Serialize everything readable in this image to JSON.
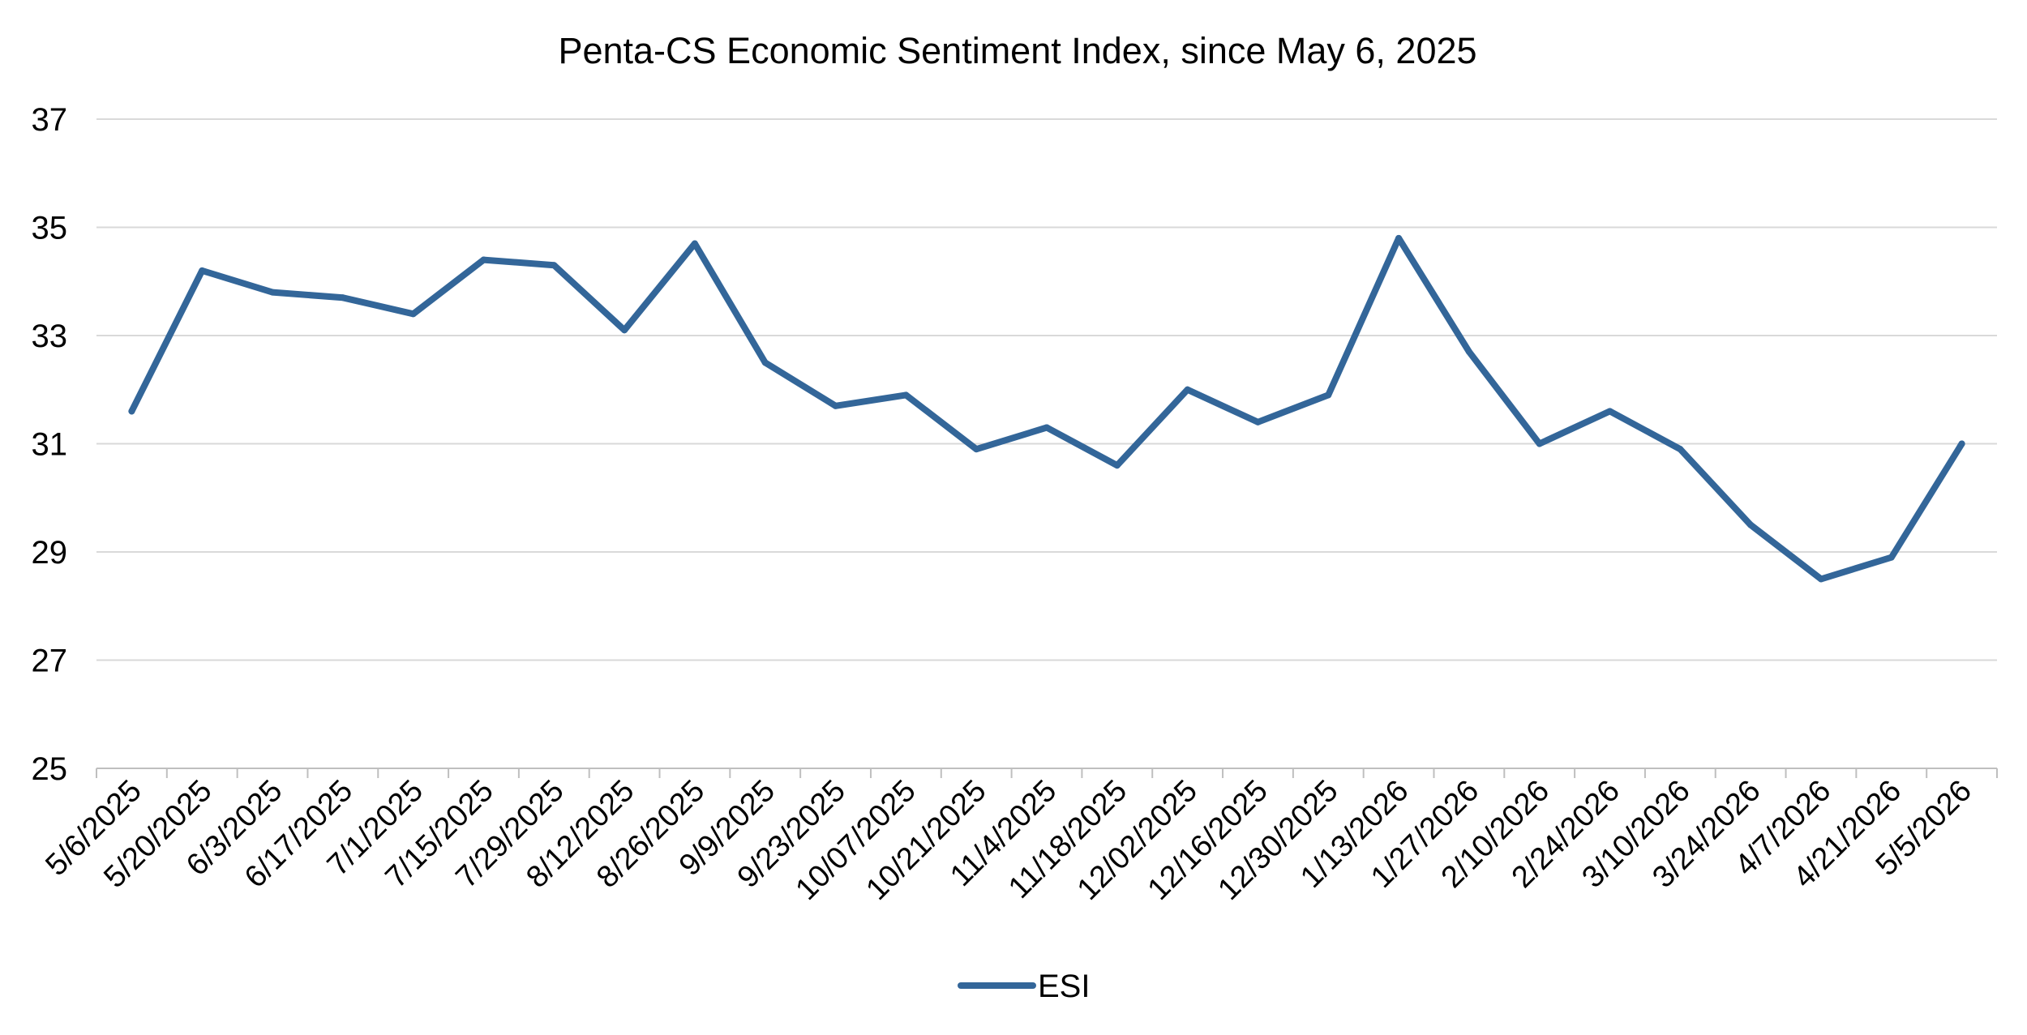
{
  "chart_data": {
    "type": "line",
    "title": "Penta-CS Economic Sentiment Index, since May 6, 2025",
    "xlabel": "",
    "ylabel": "",
    "ylim": [
      25,
      37
    ],
    "yticks": [
      25,
      27,
      29,
      31,
      33,
      35,
      37
    ],
    "grid": "horizontal",
    "legend_position": "bottom",
    "x": [
      "5/6/2025",
      "5/20/2025",
      "6/3/2025",
      "6/17/2025",
      "7/1/2025",
      "7/15/2025",
      "7/29/2025",
      "8/12/2025",
      "8/26/2025",
      "9/9/2025",
      "9/23/2025",
      "10/07/2025",
      "10/21/2025",
      "11/4/2025",
      "11/18/2025",
      "12/02/2025",
      "12/16/2025",
      "12/30/2025",
      "1/13/2026",
      "1/27/2026",
      "2/10/2026",
      "2/24/2026",
      "3/10/2026",
      "3/24/2026",
      "4/7/2026",
      "4/21/2026",
      "5/5/2026"
    ],
    "series": [
      {
        "name": "ESI",
        "color": "#336699",
        "values": [
          31.6,
          34.2,
          33.8,
          33.7,
          33.4,
          34.4,
          34.3,
          33.1,
          34.7,
          32.5,
          31.7,
          31.9,
          30.9,
          31.3,
          30.6,
          32.0,
          31.4,
          31.9,
          34.8,
          32.7,
          31.0,
          31.6,
          30.9,
          29.5,
          28.5,
          28.9,
          31.0
        ]
      }
    ]
  },
  "colors": {
    "gridline": "#d9d9d9",
    "axis": "#bfbfbf",
    "series": "#336699"
  }
}
